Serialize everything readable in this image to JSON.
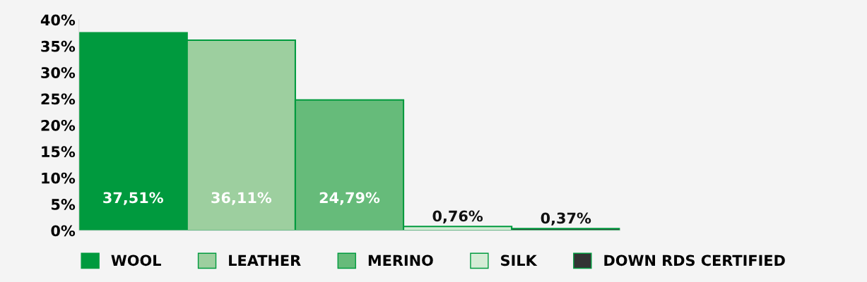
{
  "chart_data": {
    "type": "bar",
    "categories": [
      null,
      null,
      null,
      null,
      null
    ],
    "series": [
      {
        "name": "WOOL",
        "color": "#009a3e",
        "values": [
          37.51,
          null,
          null,
          null,
          null
        ],
        "value_labels": [
          "37,51%",
          null,
          null,
          null,
          null
        ]
      },
      {
        "name": "LEATHER",
        "color": "#9dcf9f",
        "values": [
          null,
          36.11,
          null,
          null,
          null
        ],
        "value_labels": [
          null,
          "36,11%",
          null,
          null,
          null
        ]
      },
      {
        "name": "MERINO",
        "color": "#66bb7a",
        "values": [
          null,
          null,
          24.79,
          null,
          null
        ],
        "value_labels": [
          null,
          null,
          "24,79%",
          null,
          null
        ]
      },
      {
        "name": "SILK",
        "color": "#d5ecd6",
        "values": [
          null,
          null,
          null,
          0.76,
          null
        ],
        "value_labels": [
          null,
          null,
          null,
          "0,76%",
          null
        ]
      },
      {
        "name": "DOWN RDS CERTIFIED",
        "color": "#333333",
        "values": [
          null,
          null,
          null,
          null,
          0.37
        ],
        "value_labels": [
          null,
          null,
          null,
          null,
          "0,37%"
        ]
      }
    ],
    "ylim": [
      0,
      40
    ],
    "yticks": [
      {
        "value": 0,
        "label": "0%"
      },
      {
        "value": 5,
        "label": "5%"
      },
      {
        "value": 10,
        "label": "10%"
      },
      {
        "value": 15,
        "label": "15%"
      },
      {
        "value": 20,
        "label": "20%"
      },
      {
        "value": 25,
        "label": "25%"
      },
      {
        "value": 30,
        "label": "30%"
      },
      {
        "value": 35,
        "label": "35%"
      },
      {
        "value": 40,
        "label": "40%"
      }
    ],
    "grid": false,
    "legend": "bottom"
  }
}
